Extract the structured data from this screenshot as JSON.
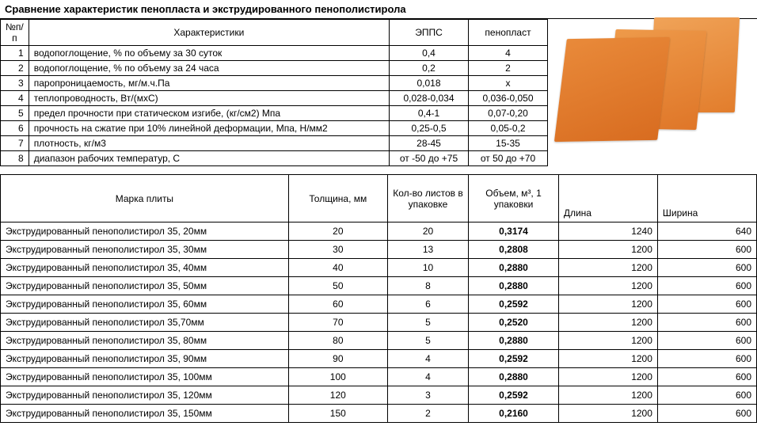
{
  "compare": {
    "title": "Сравнение характеристик пенопласта и экструдированного пенополистирола",
    "headers": {
      "num": "№п/п",
      "char": "Характеристики",
      "epps": "ЭППС",
      "foam": "пенопласт"
    },
    "rows": [
      {
        "n": "1",
        "c": "водопоглощение, % по объему за 30 суток",
        "a": "0,4",
        "b": "4"
      },
      {
        "n": "2",
        "c": "водопоглощение, % по объему за 24 часа",
        "a": "0,2",
        "b": "2"
      },
      {
        "n": "3",
        "c": "паропроницаемость, мг/м.ч.Па",
        "a": "0,018",
        "b": "х"
      },
      {
        "n": "4",
        "c": "теплопроводность, Вт/(мхС)",
        "a": "0,028-0,034",
        "b": "0,036-0,050"
      },
      {
        "n": "5",
        "c": "предел прочности при статическом изгибе, (кг/см2) Мпа",
        "a": "0,4-1",
        "b": "0,07-0,20"
      },
      {
        "n": "6",
        "c": "прочность на сжатие при 10% линейной деформации, Мпа, Н/мм2",
        "a": "0,25-0,5",
        "b": "0,05-0,2"
      },
      {
        "n": "7",
        "c": "плотность, кг/м3",
        "a": "28-45",
        "b": "15-35"
      },
      {
        "n": "8",
        "c": "диапазон рабочих температур, С",
        "a": "от -50 до +75",
        "b": "от 50 до +70"
      }
    ]
  },
  "products": {
    "headers": {
      "name": "Марка плиты",
      "thick": "Толщина, мм",
      "sheets": "Кол-во листов в упаковке",
      "vol": "Объем, м³, 1 упаковки",
      "len": "Длина",
      "wid": "Ширина"
    },
    "rows": [
      {
        "name": "Экструдированный пенополистирол 35, 20мм",
        "t": "20",
        "s": "20",
        "v": "0,3174",
        "l": "1240",
        "w": "640"
      },
      {
        "name": "Экструдированный пенополистирол 35, 30мм",
        "t": "30",
        "s": "13",
        "v": "0,2808",
        "l": "1200",
        "w": "600"
      },
      {
        "name": "Экструдированный пенополистирол 35, 40мм",
        "t": "40",
        "s": "10",
        "v": "0,2880",
        "l": "1200",
        "w": "600"
      },
      {
        "name": "Экструдированный пенополистирол 35, 50мм",
        "t": "50",
        "s": "8",
        "v": "0,2880",
        "l": "1200",
        "w": "600"
      },
      {
        "name": "Экструдированный пенополистирол 35, 60мм",
        "t": "60",
        "s": "6",
        "v": "0,2592",
        "l": "1200",
        "w": "600"
      },
      {
        "name": "Экструдированный пенополистирол 35,70мм",
        "t": "70",
        "s": "5",
        "v": "0,2520",
        "l": "1200",
        "w": "600"
      },
      {
        "name": "Экструдированный пенополистирол 35, 80мм",
        "t": "80",
        "s": "5",
        "v": "0,2880",
        "l": "1200",
        "w": "600"
      },
      {
        "name": "Экструдированный пенополистирол 35, 90мм",
        "t": "90",
        "s": "4",
        "v": "0,2592",
        "l": "1200",
        "w": "600"
      },
      {
        "name": "Экструдированный пенополистирол 35, 100мм",
        "t": "100",
        "s": "4",
        "v": "0,2880",
        "l": "1200",
        "w": "600"
      },
      {
        "name": "Экструдированный пенополистирол 35, 120мм",
        "t": "120",
        "s": "3",
        "v": "0,2592",
        "l": "1200",
        "w": "600"
      },
      {
        "name": "Экструдированный пенополистирол 35, 150мм",
        "t": "150",
        "s": "2",
        "v": "0,2160",
        "l": "1200",
        "w": "600"
      }
    ]
  }
}
